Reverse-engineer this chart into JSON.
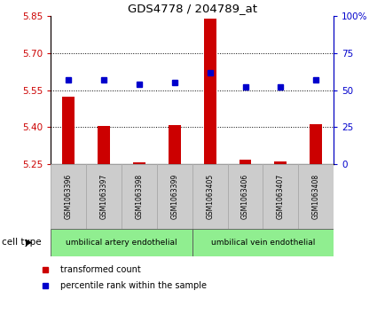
{
  "title": "GDS4778 / 204789_at",
  "samples": [
    "GSM1063396",
    "GSM1063397",
    "GSM1063398",
    "GSM1063399",
    "GSM1063405",
    "GSM1063406",
    "GSM1063407",
    "GSM1063408"
  ],
  "red_values": [
    5.525,
    5.405,
    5.257,
    5.407,
    5.84,
    5.27,
    5.263,
    5.412
  ],
  "blue_values": [
    57,
    57,
    54,
    55,
    62,
    52,
    52,
    57
  ],
  "ylim_left": [
    5.25,
    5.85
  ],
  "ylim_right": [
    0,
    100
  ],
  "yticks_left": [
    5.25,
    5.4,
    5.55,
    5.7,
    5.85
  ],
  "yticks_right": [
    0,
    25,
    50,
    75,
    100
  ],
  "ytick_labels_right": [
    "0",
    "25",
    "50",
    "75",
    "100%"
  ],
  "red_color": "#cc0000",
  "blue_color": "#0000cc",
  "bar_base": 5.25,
  "bar_width": 0.35,
  "legend_red": "transformed count",
  "legend_blue": "percentile rank within the sample",
  "cell_label": "cell type",
  "group1_label": "umbilical artery endothelial",
  "group2_label": "umbilical vein endothelial",
  "group_color": "#90ee90",
  "sample_box_color": "#cccccc",
  "sample_box_edge": "#aaaaaa"
}
